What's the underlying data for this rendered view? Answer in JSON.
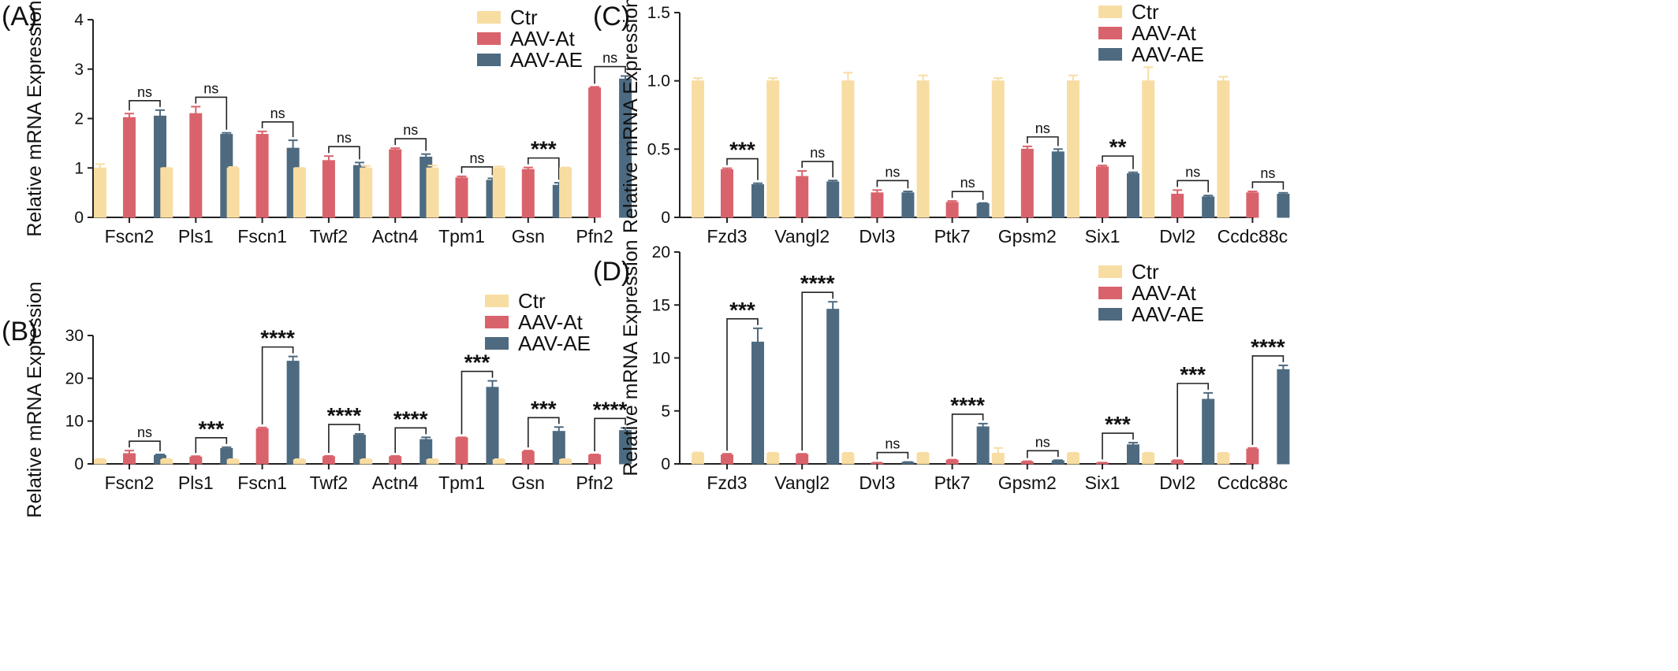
{
  "colors": {
    "Ctr": "#f8dda3",
    "AAV-At": "#d9636c",
    "AAV-AE": "#4d6a80"
  },
  "chart_data": [
    {
      "type": "bar",
      "panel": "(A)",
      "ylabel": "Relative mRNA Expression",
      "ylim": [
        0,
        4
      ],
      "yticks": [
        "0",
        "1",
        "2",
        "3",
        "4"
      ],
      "categories": [
        "Fscn2",
        "Pls1",
        "Fscn1",
        "Twf2",
        "Actn4",
        "Tpm1",
        "Gsn",
        "Pfn2"
      ],
      "legend": [
        "Ctr",
        "AAV-At",
        "AAV-AE"
      ],
      "series": [
        {
          "name": "Ctr",
          "values": [
            1.0,
            1.0,
            1.0,
            1.0,
            1.0,
            1.0,
            1.0,
            1.0
          ],
          "errors": [
            0.08,
            0.0,
            0.02,
            0.0,
            0.04,
            0.05,
            0.03,
            0.01
          ]
        },
        {
          "name": "AAV-At",
          "values": [
            2.02,
            2.1,
            1.68,
            1.15,
            1.37,
            0.8,
            0.97,
            2.62
          ],
          "errors": [
            0.08,
            0.14,
            0.06,
            0.09,
            0.03,
            0.03,
            0.04,
            0.02
          ]
        },
        {
          "name": "AAV-AE",
          "values": [
            2.05,
            1.68,
            1.4,
            1.05,
            1.22,
            0.75,
            0.65,
            2.8
          ],
          "errors": [
            0.12,
            0.03,
            0.16,
            0.06,
            0.06,
            0.04,
            0.05,
            0.06
          ]
        }
      ],
      "significance": [
        "ns",
        "ns",
        "ns",
        "ns",
        "ns",
        "ns",
        "***",
        "ns"
      ]
    },
    {
      "type": "bar",
      "panel": "(B)",
      "ylabel": "Relative mRNA Expression",
      "ylim": [
        0,
        30
      ],
      "yticks": [
        "0",
        "10",
        "20",
        "30"
      ],
      "categories": [
        "Fscn2",
        "Pls1",
        "Fscn1",
        "Twf2",
        "Actn4",
        "Tpm1",
        "Gsn",
        "Pfn2"
      ],
      "legend": [
        "Ctr",
        "AAV-At",
        "AAV-AE"
      ],
      "series": [
        {
          "name": "Ctr",
          "values": [
            1.0,
            1.0,
            1.0,
            1.0,
            1.0,
            1.0,
            1.0,
            1.0
          ],
          "errors": [
            0.15,
            0.15,
            0.1,
            0.1,
            0.1,
            0.1,
            0.1,
            0.1
          ]
        },
        {
          "name": "AAV-At",
          "values": [
            2.4,
            1.6,
            8.2,
            1.7,
            1.7,
            6.1,
            2.9,
            2.1
          ],
          "errors": [
            0.7,
            0.2,
            0.3,
            0.15,
            0.15,
            0.1,
            0.2,
            0.1
          ]
        },
        {
          "name": "AAV-AE",
          "values": [
            2.0,
            3.6,
            24.0,
            6.7,
            5.7,
            17.9,
            7.6,
            7.8
          ],
          "errors": [
            0.2,
            0.3,
            1.1,
            0.3,
            0.5,
            1.5,
            1.0,
            0.6
          ]
        }
      ],
      "significance": [
        "ns",
        "***",
        "****",
        "****",
        "****",
        "***",
        "***",
        "****"
      ]
    },
    {
      "type": "bar",
      "panel": "(C)",
      "ylabel": "Relative mRNA Expression",
      "ylim": [
        0,
        1.5
      ],
      "yticks": [
        "0",
        "0.5",
        "1.0",
        "1.5"
      ],
      "categories": [
        "Fzd3",
        "Vangl2",
        "Dvl3",
        "Ptk7",
        "Gpsm2",
        "Six1",
        "Dvl2",
        "Ccdc88c"
      ],
      "legend": [
        "Ctr",
        "AAV-At",
        "AAV-AE"
      ],
      "series": [
        {
          "name": "Ctr",
          "values": [
            1.0,
            1.0,
            1.0,
            1.0,
            1.0,
            1.0,
            1.0,
            1.0
          ],
          "errors": [
            0.02,
            0.02,
            0.06,
            0.04,
            0.02,
            0.04,
            0.1,
            0.03
          ]
        },
        {
          "name": "AAV-At",
          "values": [
            0.35,
            0.3,
            0.18,
            0.11,
            0.5,
            0.37,
            0.17,
            0.18
          ],
          "errors": [
            0.01,
            0.04,
            0.02,
            0.01,
            0.02,
            0.01,
            0.03,
            0.01
          ]
        },
        {
          "name": "AAV-AE",
          "values": [
            0.24,
            0.26,
            0.18,
            0.1,
            0.48,
            0.32,
            0.15,
            0.17
          ],
          "errors": [
            0.01,
            0.01,
            0.01,
            0.005,
            0.02,
            0.01,
            0.01,
            0.01
          ]
        }
      ],
      "significance": [
        "***",
        "ns",
        "ns",
        "ns",
        "ns",
        "**",
        "ns",
        "ns"
      ]
    },
    {
      "type": "bar",
      "panel": "(D)",
      "ylabel": "Relative mRNA Expression",
      "ylim": [
        0,
        20
      ],
      "yticks": [
        "0",
        "5",
        "10",
        "15",
        "20"
      ],
      "categories": [
        "Fzd3",
        "Vangl2",
        "Dvl3",
        "Ptk7",
        "Gpsm2",
        "Six1",
        "Dvl2",
        "Ccdc88c"
      ],
      "legend": [
        "Ctr",
        "AAV-At",
        "AAV-AE"
      ],
      "series": [
        {
          "name": "Ctr",
          "values": [
            1.0,
            1.0,
            1.0,
            1.0,
            1.0,
            1.0,
            1.0,
            1.0
          ],
          "errors": [
            0.08,
            0.05,
            0.05,
            0.05,
            0.5,
            0.05,
            0.05,
            0.05
          ]
        },
        {
          "name": "AAV-At",
          "values": [
            0.85,
            0.9,
            0.1,
            0.35,
            0.2,
            0.1,
            0.3,
            1.4
          ],
          "errors": [
            0.1,
            0.05,
            0.02,
            0.05,
            0.05,
            0.02,
            0.05,
            0.1
          ]
        },
        {
          "name": "AAV-AE",
          "values": [
            11.5,
            14.6,
            0.15,
            3.5,
            0.3,
            1.8,
            6.1,
            8.9
          ],
          "errors": [
            1.3,
            0.7,
            0.03,
            0.3,
            0.05,
            0.2,
            0.6,
            0.4
          ]
        }
      ],
      "significance": [
        "***",
        "****",
        "ns",
        "****",
        "ns",
        "***",
        "***",
        "****"
      ]
    }
  ]
}
